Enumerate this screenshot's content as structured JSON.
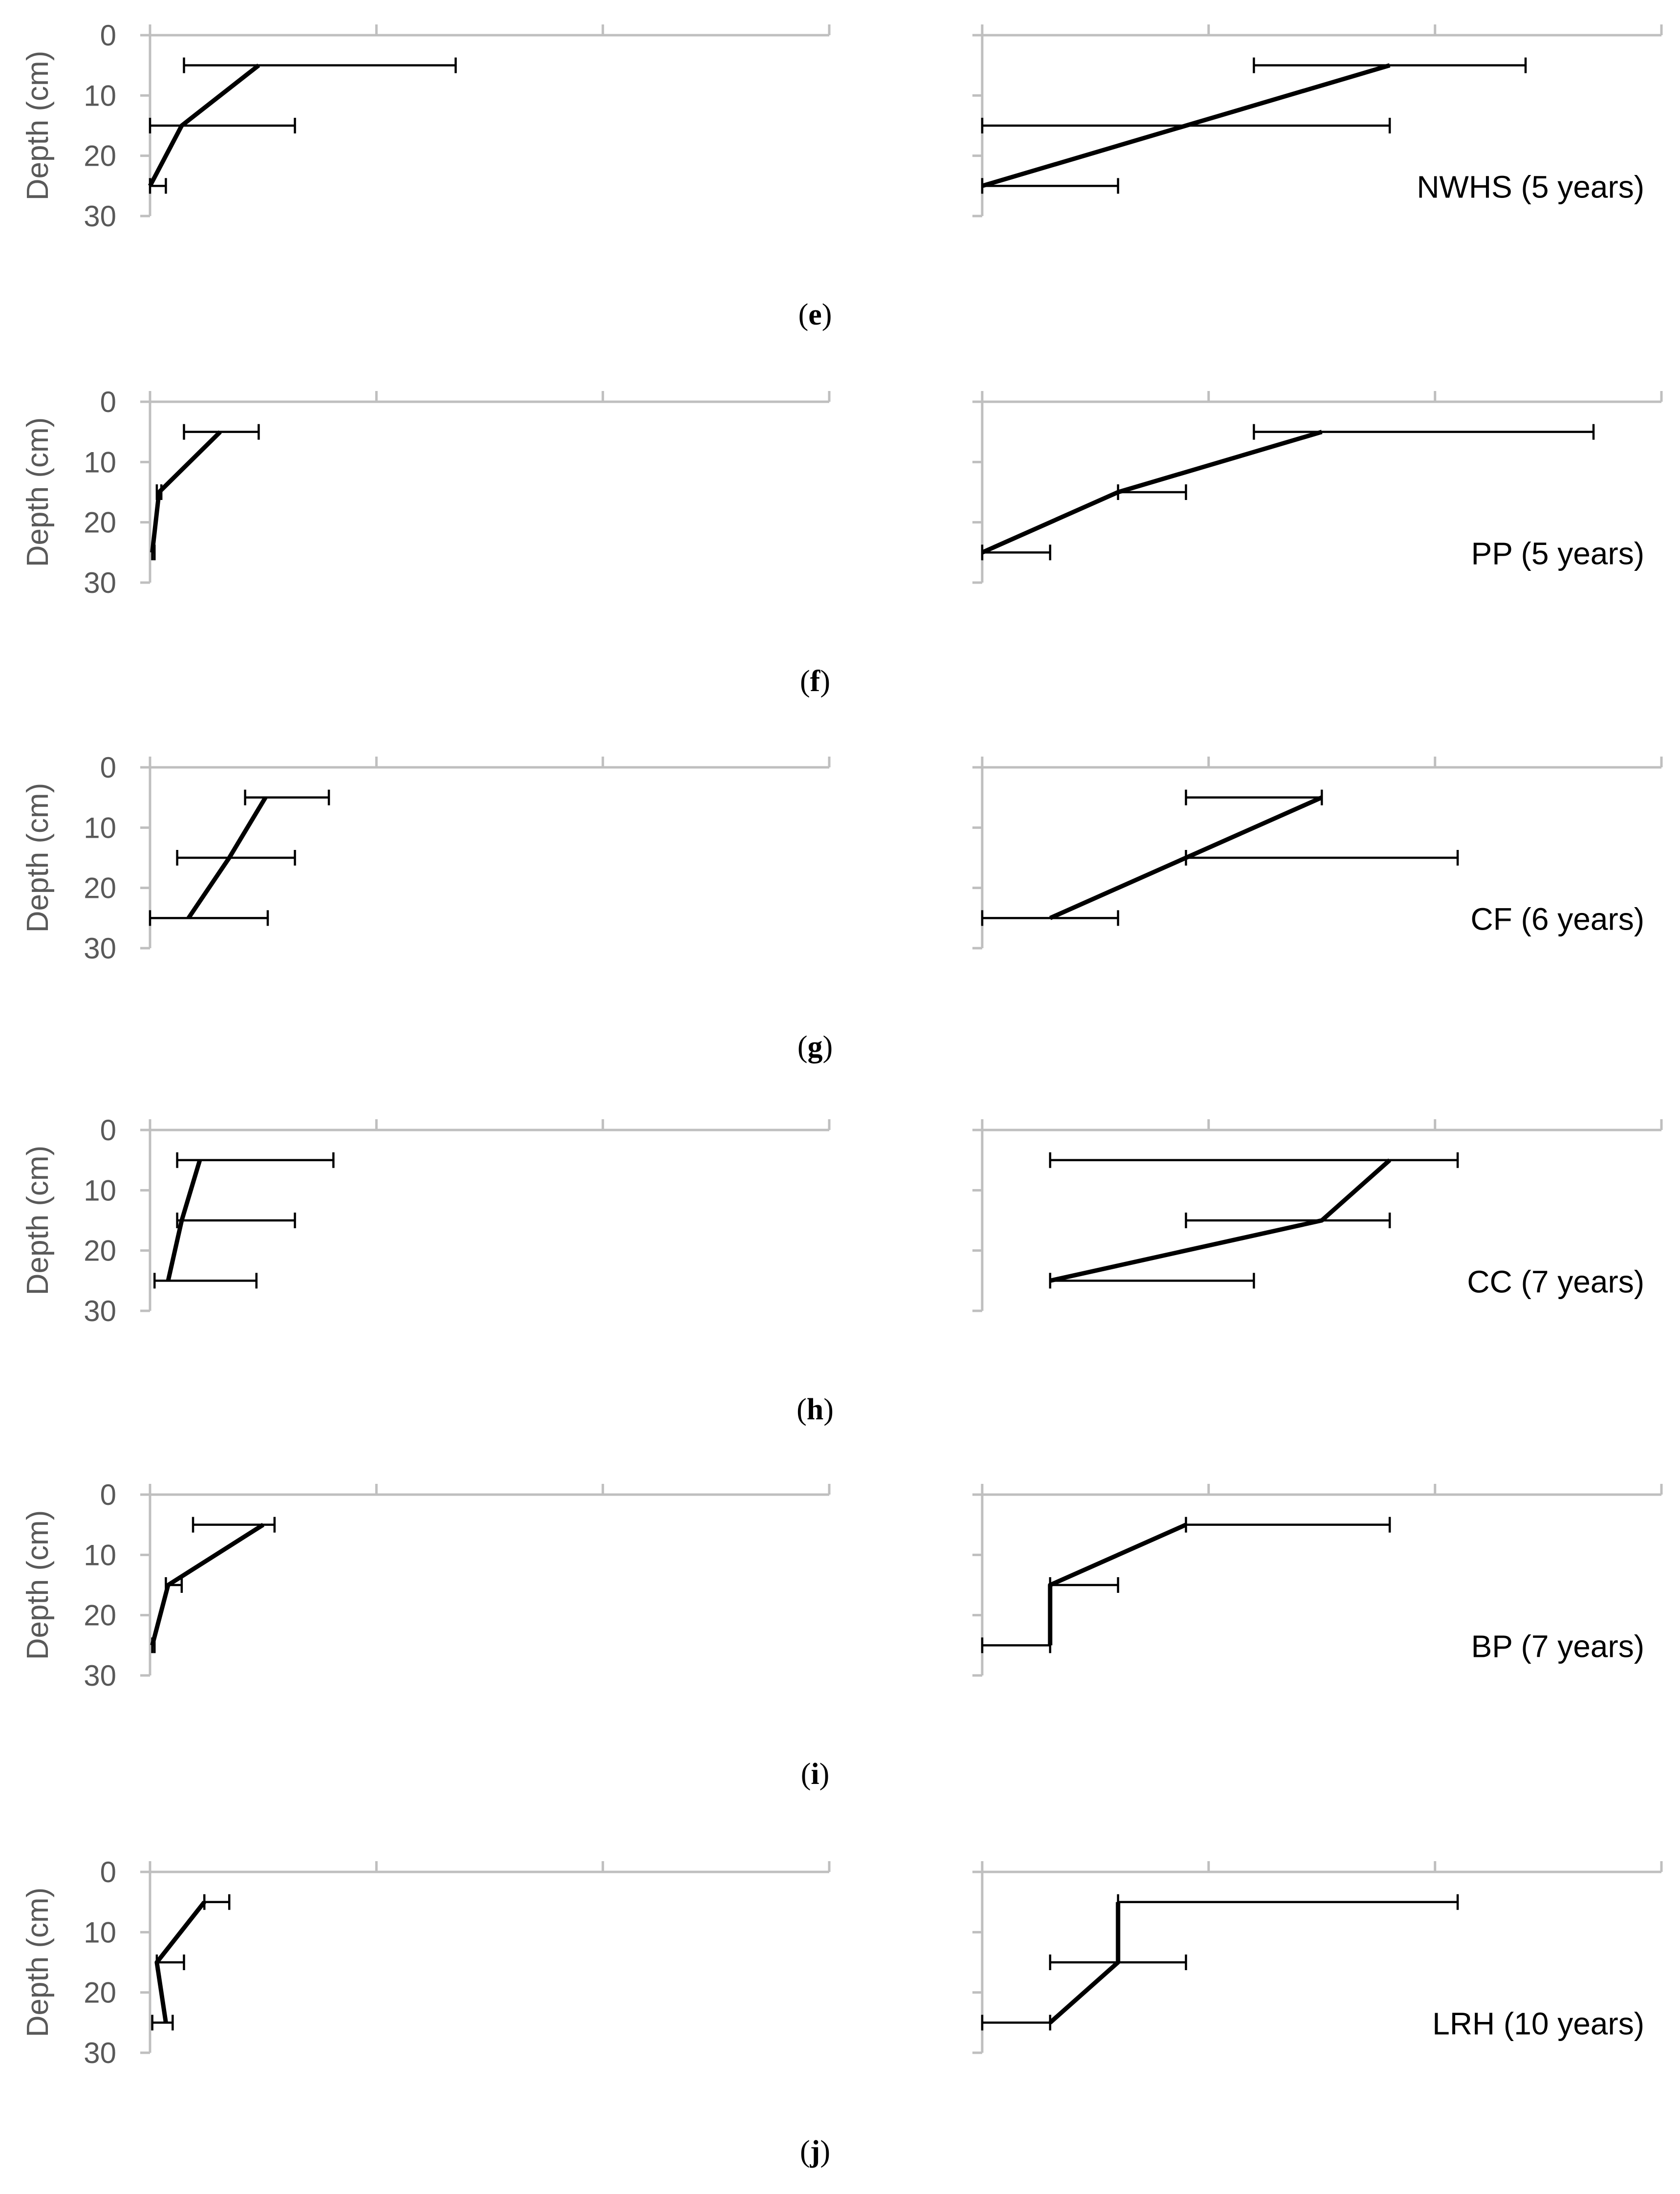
{
  "chart_data": [
    {
      "label": "e",
      "annotation": "NWHS (5 years)",
      "type": "line",
      "ylabel": "Depth (cm)",
      "yticks": [
        "0",
        "10",
        "20",
        "30"
      ],
      "ylim": [
        0,
        30
      ],
      "left": {
        "x": [
          0.48,
          0.14,
          0.0
        ],
        "depth": [
          5,
          15,
          25
        ],
        "err_low": [
          0.15,
          0.0,
          0.0
        ],
        "err_high": [
          1.35,
          0.64,
          0.07
        ]
      },
      "right": {
        "x": [
          0.6,
          0.3,
          0.0
        ],
        "depth": [
          5,
          15,
          25
        ],
        "err_low": [
          0.4,
          0.0,
          0.0
        ],
        "err_high": [
          0.8,
          0.6,
          0.2
        ]
      }
    },
    {
      "label": "f",
      "annotation": "PP (5 years)",
      "type": "line",
      "ylabel": "Depth (cm)",
      "yticks": [
        "0",
        "10",
        "20",
        "30"
      ],
      "ylim": [
        0,
        30
      ],
      "left": {
        "x": [
          0.31,
          0.04,
          0.01
        ],
        "depth": [
          5,
          15,
          25
        ],
        "err_low": [
          0.15,
          0.03,
          0.01
        ],
        "err_high": [
          0.48,
          0.05,
          0.02
        ]
      },
      "right": {
        "x": [
          0.5,
          0.2,
          0.0
        ],
        "depth": [
          5,
          15,
          25
        ],
        "err_low": [
          0.4,
          0.2,
          0.0
        ],
        "err_high": [
          0.9,
          0.3,
          0.1
        ]
      }
    },
    {
      "label": "g",
      "annotation": "CF (6 years)",
      "type": "line",
      "ylabel": "Depth (cm)",
      "yticks": [
        "0",
        "10",
        "20",
        "30"
      ],
      "ylim": [
        0,
        30
      ],
      "left": {
        "x": [
          0.51,
          0.35,
          0.17
        ],
        "depth": [
          5,
          15,
          25
        ],
        "err_low": [
          0.42,
          0.12,
          0.0
        ],
        "err_high": [
          0.79,
          0.64,
          0.52
        ]
      },
      "right": {
        "x": [
          0.5,
          0.3,
          0.1
        ],
        "depth": [
          5,
          15,
          25
        ],
        "err_low": [
          0.3,
          0.3,
          0.0
        ],
        "err_high": [
          0.5,
          0.7,
          0.2
        ]
      }
    },
    {
      "label": "h",
      "annotation": "CC (7 years)",
      "type": "line",
      "ylabel": "Depth (cm)",
      "yticks": [
        "0",
        "10",
        "20",
        "30"
      ],
      "ylim": [
        0,
        30
      ],
      "left": {
        "x": [
          0.22,
          0.14,
          0.08
        ],
        "depth": [
          5,
          15,
          25
        ],
        "err_low": [
          0.12,
          0.12,
          0.02
        ],
        "err_high": [
          0.81,
          0.64,
          0.47
        ]
      },
      "right": {
        "x": [
          0.6,
          0.5,
          0.1
        ],
        "depth": [
          5,
          15,
          25
        ],
        "err_low": [
          0.1,
          0.3,
          0.1
        ],
        "err_high": [
          0.7,
          0.6,
          0.4
        ]
      }
    },
    {
      "label": "i",
      "annotation": "BP (7 years)",
      "type": "line",
      "ylabel": "Depth (cm)",
      "yticks": [
        "0",
        "10",
        "20",
        "30"
      ],
      "ylim": [
        0,
        30
      ],
      "left": {
        "x": [
          0.5,
          0.08,
          0.01
        ],
        "depth": [
          5,
          15,
          25
        ],
        "err_low": [
          0.19,
          0.07,
          0.01
        ],
        "err_high": [
          0.55,
          0.14,
          0.02
        ]
      },
      "right": {
        "x": [
          0.3,
          0.1,
          0.1
        ],
        "depth": [
          5,
          15,
          25
        ],
        "err_low": [
          0.3,
          0.1,
          0.0
        ],
        "err_high": [
          0.6,
          0.2,
          0.1
        ]
      }
    },
    {
      "label": "j",
      "annotation": "LRH (10 years)",
      "type": "line",
      "ylabel": "Depth (cm)",
      "yticks": [
        "0",
        "10",
        "20",
        "30"
      ],
      "ylim": [
        0,
        30
      ],
      "left": {
        "x": [
          0.24,
          0.03,
          0.07
        ],
        "depth": [
          5,
          15,
          25
        ],
        "err_low": [
          0.24,
          0.03,
          0.01
        ],
        "err_high": [
          0.35,
          0.15,
          0.1
        ]
      },
      "right": {
        "x": [
          0.2,
          0.2,
          0.1
        ],
        "depth": [
          5,
          15,
          25
        ],
        "err_low": [
          0.2,
          0.1,
          0.0
        ],
        "err_high": [
          0.7,
          0.3,
          0.1
        ]
      }
    }
  ]
}
